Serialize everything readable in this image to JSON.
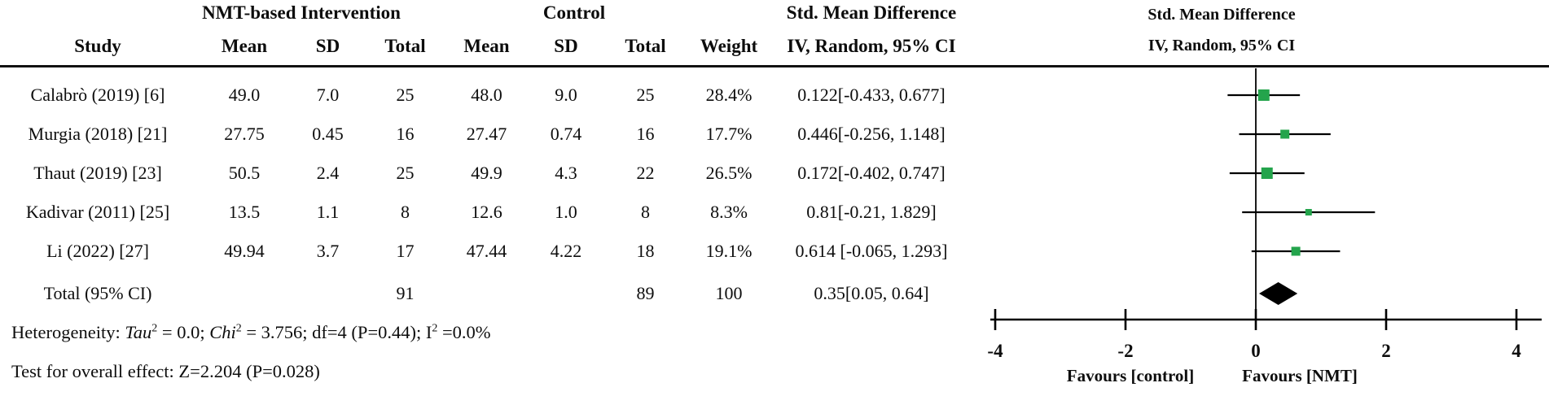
{
  "table": {
    "group_headers": {
      "intervention": "NMT-based Intervention",
      "control": "Control",
      "smd": "Std. Mean Difference"
    },
    "col_headers": {
      "study": "Study",
      "mean": "Mean",
      "sd": "SD",
      "total": "Total",
      "weight": "Weight",
      "ci": "IV, Random, 95% CI"
    },
    "rows": [
      {
        "study": "Calabrò (2019) [6]",
        "mean_i": "49.0",
        "sd_i": "7.0",
        "total_i": "25",
        "mean_c": "48.0",
        "sd_c": "9.0",
        "total_c": "25",
        "weight": "28.4%",
        "ci": "0.122[-0.433, 0.677]"
      },
      {
        "study": "Murgia (2018) [21]",
        "mean_i": "27.75",
        "sd_i": "0.45",
        "total_i": "16",
        "mean_c": "27.47",
        "sd_c": "0.74",
        "total_c": "16",
        "weight": "17.7%",
        "ci": "0.446[-0.256, 1.148]"
      },
      {
        "study": "Thaut (2019) [23]",
        "mean_i": "50.5",
        "sd_i": "2.4",
        "total_i": "25",
        "mean_c": "49.9",
        "sd_c": "4.3",
        "total_c": "22",
        "weight": "26.5%",
        "ci": "0.172[-0.402, 0.747]"
      },
      {
        "study": "Kadivar (2011) [25]",
        "mean_i": "13.5",
        "sd_i": "1.1",
        "total_i": "8",
        "mean_c": "12.6",
        "sd_c": "1.0",
        "total_c": "8",
        "weight": "8.3%",
        "ci": "0.81[-0.21, 1.829]"
      },
      {
        "study": "Li (2022) [27]",
        "mean_i": "49.94",
        "sd_i": "3.7",
        "total_i": "17",
        "mean_c": "47.44",
        "sd_c": "4.22",
        "total_c": "18",
        "weight": "19.1%",
        "ci": "0.614 [-0.065, 1.293]"
      }
    ],
    "total_row": {
      "study": "Total (95% CI)",
      "total_i": "91",
      "total_c": "89",
      "weight": "100",
      "ci": "0.35[0.05, 0.64]"
    }
  },
  "plot": {
    "headers": {
      "line1": "Std. Mean Difference",
      "line2": "IV, Random, 95% CI"
    },
    "axis": {
      "min": -4,
      "max": 4,
      "ticks": [
        -4,
        -2,
        0,
        2,
        4
      ],
      "tick_labels": [
        "-4",
        "-2",
        "0",
        "2",
        "4"
      ]
    },
    "favours_left": "Favours [control]",
    "favours_right": "Favours [NMT]",
    "marker_color": "#24a44c",
    "diamond_color": "#000000",
    "studies": [
      {
        "smd": 0.122,
        "ci_low": -0.433,
        "ci_high": 0.677,
        "weight_pct": 28.4
      },
      {
        "smd": 0.446,
        "ci_low": -0.256,
        "ci_high": 1.148,
        "weight_pct": 17.7
      },
      {
        "smd": 0.172,
        "ci_low": -0.402,
        "ci_high": 0.747,
        "weight_pct": 26.5
      },
      {
        "smd": 0.81,
        "ci_low": -0.21,
        "ci_high": 1.829,
        "weight_pct": 8.3
      },
      {
        "smd": 0.614,
        "ci_low": -0.065,
        "ci_high": 1.293,
        "weight_pct": 19.1
      }
    ],
    "total": {
      "smd": 0.345,
      "ci_low": 0.05,
      "ci_high": 0.64
    }
  },
  "footer": {
    "het_label": "Heterogeneity: ",
    "het_tau": "Tau",
    "het_tau_sup": "2",
    "het_tau_val": " = 0.0; ",
    "het_chi": "Chi",
    "het_chi_sup": "2",
    "het_chi_val": " = 3.756; df=4 (P=0.44); I",
    "het_i_sup": "2",
    "het_i_val": " =0.0%",
    "overall_effect": "Test for overall effect: Z=2.204 (P=0.028)"
  },
  "chart_data": {
    "type": "scatter",
    "subtype": "forest-plot",
    "title": "Std. Mean Difference, IV, Random, 95% CI",
    "categories": [
      "Calabrò (2019) [6]",
      "Murgia (2018) [21]",
      "Thaut (2019) [23]",
      "Kadivar (2011) [25]",
      "Li (2022) [27]"
    ],
    "series": [
      {
        "name": "SMD",
        "values": [
          0.122,
          0.446,
          0.172,
          0.81,
          0.614
        ]
      },
      {
        "name": "CI low",
        "values": [
          -0.433,
          -0.256,
          -0.402,
          -0.21,
          -0.065
        ]
      },
      {
        "name": "CI high",
        "values": [
          0.677,
          1.148,
          0.747,
          1.829,
          1.293
        ]
      },
      {
        "name": "Weight %",
        "values": [
          28.4,
          17.7,
          26.5,
          8.3,
          19.1
        ]
      }
    ],
    "total": {
      "smd": 0.35,
      "ci_low": 0.05,
      "ci_high": 0.64,
      "weight": 100
    },
    "xlim": [
      -4,
      4
    ],
    "x_ticks": [
      -4,
      -2,
      0,
      2,
      4
    ],
    "xlabel_left": "Favours [control]",
    "xlabel_right": "Favours [NMT]",
    "legend": "none",
    "grid": "off"
  }
}
